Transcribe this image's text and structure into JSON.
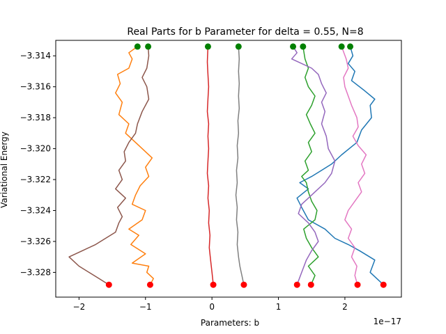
{
  "chart_data": {
    "type": "line",
    "title": "Real Parts for b Parameter for delta = 0.55, N=8",
    "xlabel": "Parameters: b",
    "ylabel": "Variational Energy",
    "x_offset_label": "1e−17",
    "xlim": [
      -2.35,
      2.85
    ],
    "ylim": [
      -3.3296,
      -3.313
    ],
    "x_ticks": [
      -2,
      -1,
      0,
      1,
      2
    ],
    "x_tick_labels": [
      "−2",
      "−1",
      "0",
      "1",
      "2"
    ],
    "y_ticks": [
      -3.314,
      -3.316,
      -3.318,
      -3.32,
      -3.322,
      -3.324,
      -3.326,
      -3.328
    ],
    "y_tick_labels": [
      "−3.314",
      "−3.316",
      "−3.318",
      "−3.320",
      "−3.322",
      "−3.324",
      "−3.326",
      "−3.328"
    ],
    "grid": false,
    "series": [
      {
        "color": "#1f77b4",
        "start": [
          2.58,
          -3.3288
        ],
        "end": [
          2.08,
          -3.3134
        ],
        "points": [
          [
            2.58,
            -3.3288
          ],
          [
            2.38,
            -3.328
          ],
          [
            2.45,
            -3.3272
          ],
          [
            2.22,
            -3.3266
          ],
          [
            2.05,
            -3.3262
          ],
          [
            1.85,
            -3.3258
          ],
          [
            1.7,
            -3.3252
          ],
          [
            1.45,
            -3.3246
          ],
          [
            1.35,
            -3.3238
          ],
          [
            1.28,
            -3.3232
          ],
          [
            1.45,
            -3.3226
          ],
          [
            1.32,
            -3.3222
          ],
          [
            1.5,
            -3.3218
          ],
          [
            1.65,
            -3.3214
          ],
          [
            1.8,
            -3.321
          ],
          [
            1.95,
            -3.3204
          ],
          [
            2.18,
            -3.3196
          ],
          [
            2.25,
            -3.3188
          ],
          [
            2.4,
            -3.318
          ],
          [
            2.38,
            -3.3172
          ],
          [
            2.45,
            -3.3168
          ],
          [
            2.28,
            -3.3162
          ],
          [
            2.1,
            -3.3156
          ],
          [
            2.15,
            -3.315
          ],
          [
            2.05,
            -3.3145
          ],
          [
            2.12,
            -3.314
          ],
          [
            2.08,
            -3.3134
          ]
        ]
      },
      {
        "color": "#ff7f0e",
        "start": [
          -0.93,
          -3.3288
        ],
        "end": [
          -1.12,
          -3.3134
        ],
        "points": [
          [
            -0.93,
            -3.3288
          ],
          [
            -0.88,
            -3.3284
          ],
          [
            -0.98,
            -3.328
          ],
          [
            -0.95,
            -3.3276
          ],
          [
            -1.2,
            -3.3274
          ],
          [
            -1.0,
            -3.3268
          ],
          [
            -1.22,
            -3.3262
          ],
          [
            -1.1,
            -3.3256
          ],
          [
            -1.25,
            -3.3252
          ],
          [
            -1.05,
            -3.3246
          ],
          [
            -1.0,
            -3.324
          ],
          [
            -1.2,
            -3.3236
          ],
          [
            -1.15,
            -3.323
          ],
          [
            -1.08,
            -3.3224
          ],
          [
            -0.95,
            -3.3218
          ],
          [
            -1.0,
            -3.3212
          ],
          [
            -0.9,
            -3.3206
          ],
          [
            -1.05,
            -3.32
          ],
          [
            -1.15,
            -3.3196
          ],
          [
            -1.3,
            -3.319
          ],
          [
            -1.25,
            -3.3184
          ],
          [
            -1.4,
            -3.3178
          ],
          [
            -1.35,
            -3.317
          ],
          [
            -1.45,
            -3.3164
          ],
          [
            -1.38,
            -3.3158
          ],
          [
            -1.42,
            -3.3152
          ],
          [
            -1.25,
            -3.3148
          ],
          [
            -1.2,
            -3.3142
          ],
          [
            -1.25,
            -3.3138
          ],
          [
            -1.12,
            -3.3134
          ]
        ]
      },
      {
        "color": "#2ca02c",
        "start": [
          1.49,
          -3.3288
        ],
        "end": [
          1.37,
          -3.3134
        ],
        "points": [
          [
            1.49,
            -3.3288
          ],
          [
            1.55,
            -3.3282
          ],
          [
            1.45,
            -3.3276
          ],
          [
            1.6,
            -3.327
          ],
          [
            1.5,
            -3.3264
          ],
          [
            1.42,
            -3.3258
          ],
          [
            1.38,
            -3.3252
          ],
          [
            1.55,
            -3.3246
          ],
          [
            1.58,
            -3.324
          ],
          [
            1.5,
            -3.3234
          ],
          [
            1.45,
            -3.3228
          ],
          [
            1.42,
            -3.3222
          ],
          [
            1.35,
            -3.3218
          ],
          [
            1.45,
            -3.3214
          ],
          [
            1.4,
            -3.3208
          ],
          [
            1.5,
            -3.3202
          ],
          [
            1.45,
            -3.3196
          ],
          [
            1.55,
            -3.319
          ],
          [
            1.48,
            -3.3184
          ],
          [
            1.42,
            -3.3178
          ],
          [
            1.5,
            -3.3172
          ],
          [
            1.55,
            -3.3166
          ],
          [
            1.45,
            -3.316
          ],
          [
            1.4,
            -3.3154
          ],
          [
            1.45,
            -3.3148
          ],
          [
            1.4,
            -3.3142
          ],
          [
            1.37,
            -3.3134
          ]
        ]
      },
      {
        "color": "#d62728",
        "start": [
          0.02,
          -3.3288
        ],
        "end": [
          -0.06,
          -3.3134
        ],
        "points": [
          [
            0.02,
            -3.3288
          ],
          [
            0.0,
            -3.328
          ],
          [
            -0.02,
            -3.3272
          ],
          [
            -0.04,
            -3.3264
          ],
          [
            -0.03,
            -3.3256
          ],
          [
            -0.05,
            -3.3248
          ],
          [
            -0.04,
            -3.324
          ],
          [
            -0.06,
            -3.3232
          ],
          [
            -0.05,
            -3.3224
          ],
          [
            -0.07,
            -3.3216
          ],
          [
            -0.06,
            -3.3208
          ],
          [
            -0.05,
            -3.32
          ],
          [
            -0.06,
            -3.3192
          ],
          [
            -0.05,
            -3.3184
          ],
          [
            -0.07,
            -3.3176
          ],
          [
            -0.06,
            -3.3168
          ],
          [
            -0.05,
            -3.316
          ],
          [
            -0.06,
            -3.3152
          ],
          [
            -0.07,
            -3.3144
          ],
          [
            -0.06,
            -3.3134
          ]
        ]
      },
      {
        "color": "#9467bd",
        "start": [
          1.28,
          -3.3288
        ],
        "end": [
          1.22,
          -3.3134
        ],
        "points": [
          [
            1.28,
            -3.3288
          ],
          [
            1.35,
            -3.328
          ],
          [
            1.42,
            -3.3272
          ],
          [
            1.5,
            -3.3266
          ],
          [
            1.6,
            -3.326
          ],
          [
            1.55,
            -3.3254
          ],
          [
            1.45,
            -3.3248
          ],
          [
            1.3,
            -3.3242
          ],
          [
            1.35,
            -3.3236
          ],
          [
            1.45,
            -3.3232
          ],
          [
            1.55,
            -3.3228
          ],
          [
            1.7,
            -3.3222
          ],
          [
            1.8,
            -3.3216
          ],
          [
            1.85,
            -3.3208
          ],
          [
            1.75,
            -3.32
          ],
          [
            1.72,
            -3.3192
          ],
          [
            1.65,
            -3.3184
          ],
          [
            1.7,
            -3.3176
          ],
          [
            1.65,
            -3.317
          ],
          [
            1.72,
            -3.3164
          ],
          [
            1.65,
            -3.3158
          ],
          [
            1.6,
            -3.3152
          ],
          [
            1.5,
            -3.3148
          ],
          [
            1.35,
            -3.3145
          ],
          [
            1.2,
            -3.3142
          ],
          [
            1.28,
            -3.3138
          ],
          [
            1.22,
            -3.3134
          ]
        ]
      },
      {
        "color": "#8c564b",
        "start": [
          -1.55,
          -3.3288
        ],
        "end": [
          -0.96,
          -3.3134
        ],
        "points": [
          [
            -1.55,
            -3.3288
          ],
          [
            -1.7,
            -3.3284
          ],
          [
            -1.85,
            -3.328
          ],
          [
            -2.0,
            -3.3276
          ],
          [
            -2.15,
            -3.327
          ],
          [
            -1.95,
            -3.3266
          ],
          [
            -1.75,
            -3.3262
          ],
          [
            -1.6,
            -3.3258
          ],
          [
            -1.45,
            -3.3254
          ],
          [
            -1.4,
            -3.3248
          ],
          [
            -1.35,
            -3.3244
          ],
          [
            -1.42,
            -3.3238
          ],
          [
            -1.3,
            -3.3232
          ],
          [
            -1.45,
            -3.3226
          ],
          [
            -1.35,
            -3.322
          ],
          [
            -1.4,
            -3.3214
          ],
          [
            -1.3,
            -3.3208
          ],
          [
            -1.32,
            -3.3202
          ],
          [
            -1.25,
            -3.3196
          ],
          [
            -1.15,
            -3.319
          ],
          [
            -1.12,
            -3.3184
          ],
          [
            -1.05,
            -3.3176
          ],
          [
            -0.95,
            -3.3168
          ],
          [
            -0.98,
            -3.316
          ],
          [
            -1.05,
            -3.3154
          ],
          [
            -0.98,
            -3.3148
          ],
          [
            -0.95,
            -3.314
          ],
          [
            -0.96,
            -3.3134
          ]
        ]
      },
      {
        "color": "#e377c2",
        "start": [
          2.19,
          -3.3288
        ],
        "end": [
          1.95,
          -3.3134
        ],
        "points": [
          [
            2.19,
            -3.3288
          ],
          [
            2.15,
            -3.3282
          ],
          [
            2.18,
            -3.3276
          ],
          [
            2.1,
            -3.327
          ],
          [
            2.15,
            -3.3264
          ],
          [
            2.05,
            -3.3258
          ],
          [
            2.1,
            -3.3252
          ],
          [
            2.0,
            -3.3246
          ],
          [
            2.05,
            -3.324
          ],
          [
            2.15,
            -3.3234
          ],
          [
            2.25,
            -3.3228
          ],
          [
            2.2,
            -3.3222
          ],
          [
            2.3,
            -3.3216
          ],
          [
            2.25,
            -3.321
          ],
          [
            2.32,
            -3.3204
          ],
          [
            2.2,
            -3.3198
          ],
          [
            2.12,
            -3.3192
          ],
          [
            2.2,
            -3.3186
          ],
          [
            2.18,
            -3.318
          ],
          [
            2.1,
            -3.3172
          ],
          [
            2.05,
            -3.3166
          ],
          [
            2.0,
            -3.316
          ],
          [
            1.98,
            -3.3154
          ],
          [
            2.05,
            -3.3148
          ],
          [
            2.02,
            -3.3142
          ],
          [
            1.95,
            -3.3134
          ]
        ]
      },
      {
        "color": "#7f7f7f",
        "start": [
          0.48,
          -3.3288
        ],
        "end": [
          0.4,
          -3.3134
        ],
        "points": [
          [
            0.48,
            -3.3288
          ],
          [
            0.45,
            -3.3282
          ],
          [
            0.42,
            -3.3276
          ],
          [
            0.4,
            -3.327
          ],
          [
            0.38,
            -3.3262
          ],
          [
            0.39,
            -3.3254
          ],
          [
            0.37,
            -3.3246
          ],
          [
            0.38,
            -3.3238
          ],
          [
            0.36,
            -3.323
          ],
          [
            0.38,
            -3.3222
          ],
          [
            0.37,
            -3.3214
          ],
          [
            0.39,
            -3.3206
          ],
          [
            0.38,
            -3.3198
          ],
          [
            0.4,
            -3.319
          ],
          [
            0.39,
            -3.3182
          ],
          [
            0.41,
            -3.3174
          ],
          [
            0.4,
            -3.3166
          ],
          [
            0.41,
            -3.3158
          ],
          [
            0.4,
            -3.315
          ],
          [
            0.41,
            -3.3142
          ],
          [
            0.4,
            -3.3134
          ]
        ]
      }
    ],
    "start_marker_color": "#ff0000",
    "end_marker_color": "#008000"
  }
}
